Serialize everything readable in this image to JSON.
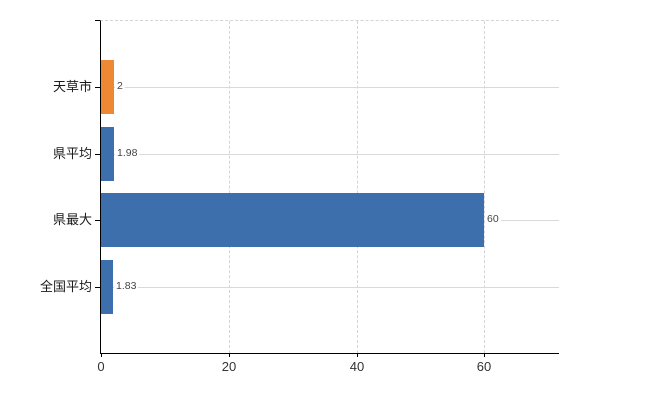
{
  "chart_data": {
    "type": "bar",
    "orientation": "horizontal",
    "title": "",
    "xlabel": "",
    "ylabel": "",
    "categories": [
      "天草市",
      "県平均",
      "県最大",
      "全国平均"
    ],
    "values": [
      2,
      1.98,
      60,
      1.83
    ],
    "value_labels": [
      "2",
      "1.98",
      "60",
      "1.83"
    ],
    "bar_colors": [
      "#ee8834",
      "#3d6fad",
      "#3d6fad",
      "#3d6fad"
    ],
    "x_ticks": [
      0,
      20,
      40,
      60
    ],
    "x_tick_labels": [
      "0",
      "20",
      "40",
      "60"
    ],
    "xlim": [
      0,
      71.7
    ],
    "legend": "none",
    "grid": {
      "vertical": "dashed light gray at each x tick",
      "horizontal": "solid light gray line through each category center",
      "top_border": "dashed light gray"
    }
  },
  "colors": {
    "bar_blue": "#3d6fad",
    "bar_orange": "#ee8834",
    "axis": "#000000",
    "grid_solid": "#d6dbd6",
    "grid_dashed": "#d3d3d8",
    "tick_label": "#333333",
    "value_label": "#444444",
    "category_label": "#1a1a1a",
    "background": "#ffffff"
  }
}
